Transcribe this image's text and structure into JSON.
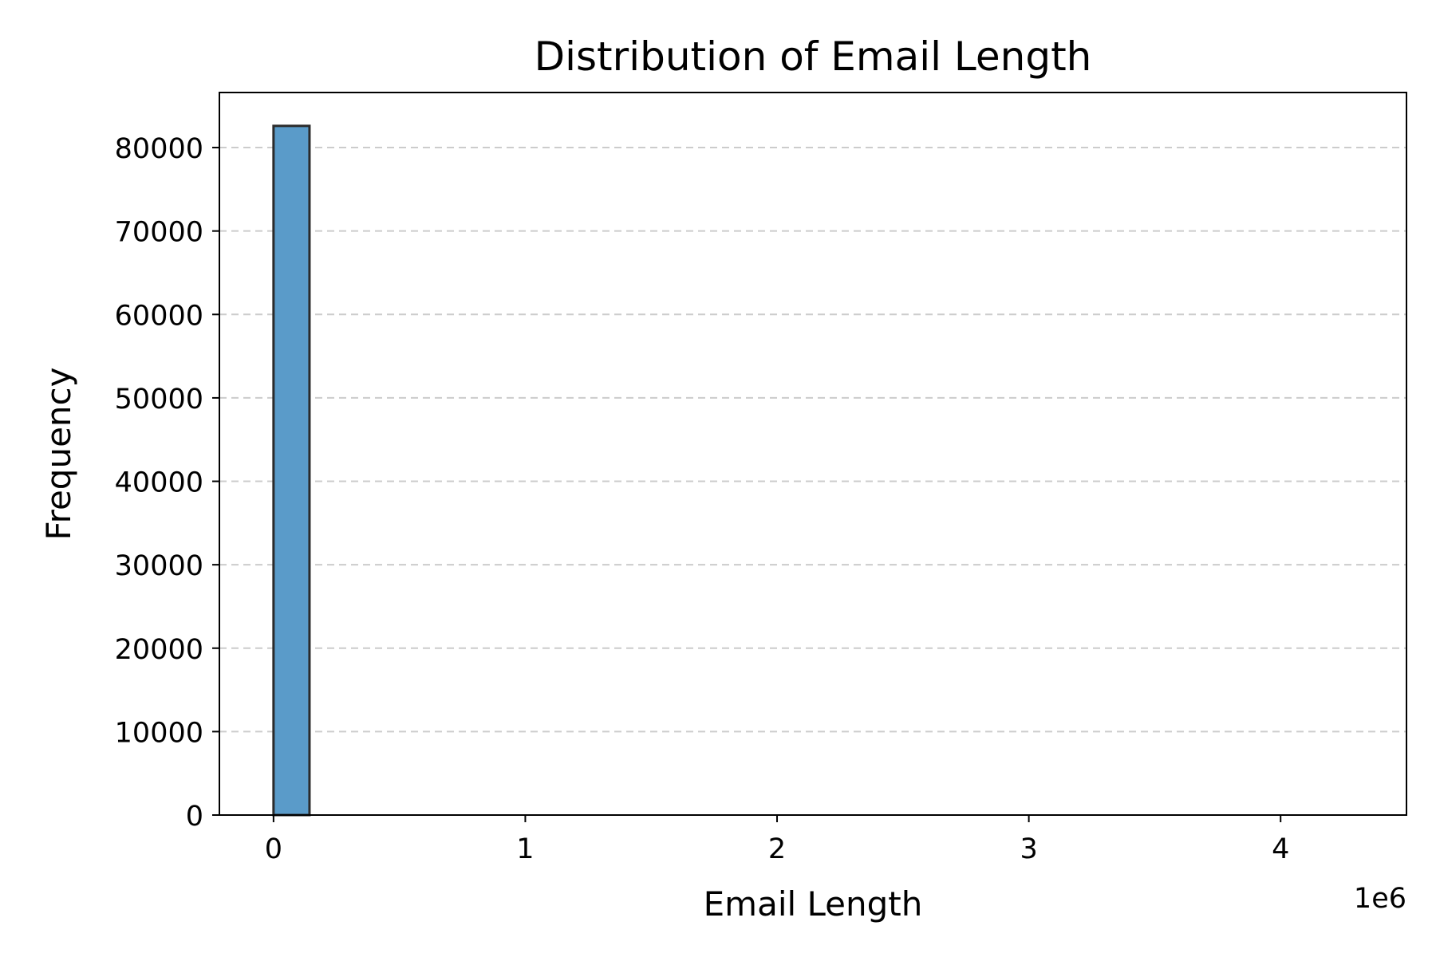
{
  "chart_data": {
    "type": "bar",
    "subtype": "histogram",
    "title": "Distribution of Email Length",
    "xlabel": "Email Length",
    "ylabel": "Frequency",
    "x_offset_label": "1e6",
    "x_scale": 1000000,
    "xlim": [
      -0.215,
      4.5
    ],
    "ylim": [
      0,
      86600
    ],
    "xticks": [
      0,
      1,
      2,
      3,
      4
    ],
    "xtick_labels": [
      "0",
      "1",
      "2",
      "3",
      "4"
    ],
    "yticks": [
      0,
      10000,
      20000,
      30000,
      40000,
      50000,
      60000,
      70000,
      80000
    ],
    "ytick_labels": [
      "0",
      "10000",
      "20000",
      "30000",
      "40000",
      "50000",
      "60000",
      "70000",
      "80000"
    ],
    "grid": {
      "y": true,
      "x": false,
      "style": "dashed"
    },
    "bin_edges": [
      0,
      0.1429,
      0.2857,
      0.4286,
      0.5714,
      0.7143,
      0.8571,
      1.0,
      1.1429,
      1.2857,
      1.4286,
      1.5714,
      1.7143,
      1.8571,
      2.0,
      2.1429,
      2.2857,
      2.4286,
      2.5714,
      2.7143,
      2.8571,
      3.0,
      3.1429,
      3.2857,
      3.4286,
      3.5714,
      3.7143,
      3.8571,
      4.0,
      4.1429,
      4.2857
    ],
    "counts": [
      82600,
      0,
      0,
      0,
      0,
      0,
      0,
      0,
      0,
      0,
      0,
      0,
      0,
      0,
      0,
      0,
      0,
      0,
      0,
      0,
      0,
      0,
      0,
      0,
      0,
      0,
      0,
      0,
      0,
      0
    ],
    "colors": {
      "bar_fill": "#5a9bc9",
      "bar_edge": "#2b2b2b",
      "grid": "#cccccc",
      "axis": "#000000"
    }
  }
}
